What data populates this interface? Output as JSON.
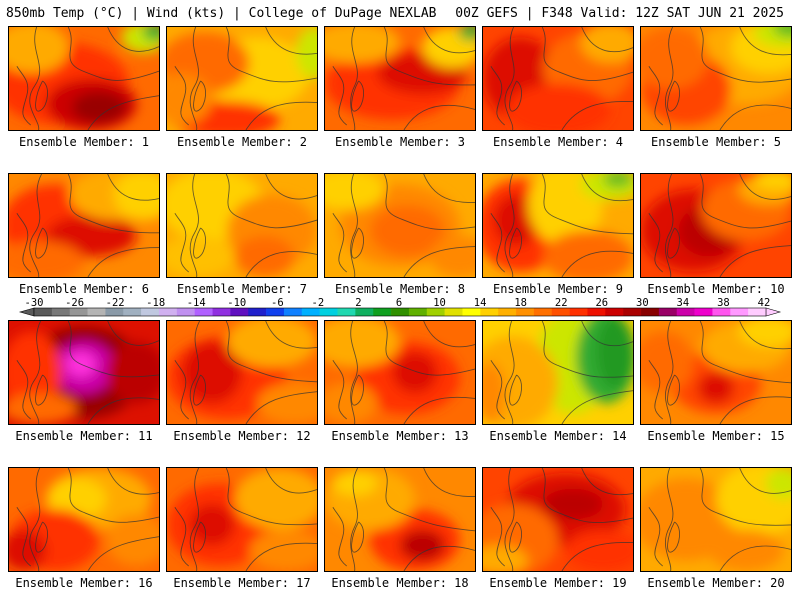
{
  "header": {
    "left": "850mb Temp (°C) | Wind (kts) | College of DuPage NEXLAB",
    "right": "00Z GEFS | F348 Valid: 12Z SAT JUN 21 2025"
  },
  "panels": [
    {
      "label": "Ensemble Member: 1",
      "base": "#ff6a00",
      "blobs": [
        [
          "#ff3300",
          0.35,
          0.55,
          0.45,
          0.4
        ],
        [
          "#cc0000",
          0.55,
          0.75,
          0.3,
          0.25
        ],
        [
          "#990000",
          0.6,
          0.78,
          0.18,
          0.15
        ],
        [
          "#ffaa00",
          0.15,
          0.2,
          0.25,
          0.25
        ],
        [
          "#cce600",
          0.9,
          0.1,
          0.15,
          0.15
        ],
        [
          "#33aa33",
          0.97,
          0.05,
          0.08,
          0.08
        ]
      ]
    },
    {
      "label": "Ensemble Member: 2",
      "base": "#ffaa00",
      "blobs": [
        [
          "#ffd000",
          0.6,
          0.45,
          0.35,
          0.35
        ],
        [
          "#ff6a00",
          0.25,
          0.35,
          0.3,
          0.3
        ],
        [
          "#ff3300",
          0.4,
          0.9,
          0.35,
          0.18
        ],
        [
          "#cce600",
          0.98,
          0.25,
          0.12,
          0.25
        ],
        [
          "#ff8800",
          0.1,
          0.7,
          0.2,
          0.25
        ]
      ]
    },
    {
      "label": "Ensemble Member: 3",
      "base": "#ff6a00",
      "blobs": [
        [
          "#ff3300",
          0.45,
          0.55,
          0.45,
          0.35
        ],
        [
          "#dd1100",
          0.65,
          0.45,
          0.3,
          0.2
        ],
        [
          "#ffaa00",
          0.2,
          0.15,
          0.3,
          0.2
        ],
        [
          "#ffd000",
          0.85,
          0.2,
          0.2,
          0.2
        ],
        [
          "#33aa33",
          0.97,
          0.05,
          0.08,
          0.08
        ]
      ]
    },
    {
      "label": "Ensemble Member: 4",
      "base": "#ff4400",
      "blobs": [
        [
          "#dd1100",
          0.25,
          0.5,
          0.25,
          0.4
        ],
        [
          "#ff6a00",
          0.7,
          0.4,
          0.3,
          0.35
        ],
        [
          "#ffaa00",
          0.85,
          0.15,
          0.2,
          0.2
        ],
        [
          "#ff3300",
          0.5,
          0.8,
          0.35,
          0.25
        ]
      ]
    },
    {
      "label": "Ensemble Member: 5",
      "base": "#ff8800",
      "blobs": [
        [
          "#ffaa00",
          0.7,
          0.35,
          0.4,
          0.4
        ],
        [
          "#ffd000",
          0.85,
          0.2,
          0.25,
          0.25
        ],
        [
          "#cce600",
          0.95,
          0.05,
          0.2,
          0.15
        ],
        [
          "#66bb22",
          1.0,
          0.0,
          0.12,
          0.1
        ],
        [
          "#ff4400",
          0.3,
          0.6,
          0.3,
          0.35
        ],
        [
          "#ff6a00",
          0.2,
          0.3,
          0.25,
          0.3
        ]
      ]
    },
    {
      "label": "Ensemble Member: 6",
      "base": "#ff8800",
      "blobs": [
        [
          "#ff3300",
          0.3,
          0.5,
          0.35,
          0.4
        ],
        [
          "#dd1100",
          0.55,
          0.6,
          0.3,
          0.2
        ],
        [
          "#ffaa00",
          0.7,
          0.2,
          0.3,
          0.25
        ],
        [
          "#ffd000",
          0.9,
          0.2,
          0.2,
          0.25
        ],
        [
          "#ff6a00",
          0.2,
          0.85,
          0.3,
          0.2
        ]
      ]
    },
    {
      "label": "Ensemble Member: 7",
      "base": "#ffaa00",
      "blobs": [
        [
          "#ffd000",
          0.3,
          0.3,
          0.35,
          0.35
        ],
        [
          "#ff8800",
          0.7,
          0.55,
          0.3,
          0.35
        ],
        [
          "#ff6a00",
          0.65,
          0.8,
          0.2,
          0.2
        ],
        [
          "#ffc000",
          0.2,
          0.8,
          0.25,
          0.2
        ]
      ]
    },
    {
      "label": "Ensemble Member: 8",
      "base": "#ffaa00",
      "blobs": [
        [
          "#ff8800",
          0.5,
          0.5,
          0.4,
          0.4
        ],
        [
          "#ff6a00",
          0.55,
          0.55,
          0.25,
          0.25
        ],
        [
          "#ffd000",
          0.15,
          0.15,
          0.25,
          0.2
        ],
        [
          "#ff8800",
          0.9,
          0.8,
          0.2,
          0.2
        ]
      ]
    },
    {
      "label": "Ensemble Member: 9",
      "base": "#ffaa00",
      "blobs": [
        [
          "#ff3300",
          0.25,
          0.5,
          0.3,
          0.45
        ],
        [
          "#dd1100",
          0.22,
          0.45,
          0.15,
          0.25
        ],
        [
          "#ffd000",
          0.55,
          0.3,
          0.25,
          0.4
        ],
        [
          "#cce600",
          0.85,
          0.1,
          0.2,
          0.15
        ],
        [
          "#66bb22",
          0.9,
          0.05,
          0.1,
          0.08
        ],
        [
          "#ff6a00",
          0.7,
          0.8,
          0.3,
          0.25
        ]
      ]
    },
    {
      "label": "Ensemble Member: 10",
      "base": "#ff4400",
      "blobs": [
        [
          "#dd1100",
          0.35,
          0.55,
          0.35,
          0.4
        ],
        [
          "#bb0000",
          0.45,
          0.55,
          0.2,
          0.25
        ],
        [
          "#ff6a00",
          0.7,
          0.35,
          0.3,
          0.3
        ],
        [
          "#ffaa00",
          0.85,
          0.15,
          0.2,
          0.15
        ],
        [
          "#ffd000",
          0.9,
          0.05,
          0.15,
          0.1
        ]
      ]
    },
    {
      "label": "Ensemble Member: 11",
      "base": "#dd1100",
      "blobs": [
        [
          "#990000",
          0.5,
          0.5,
          0.4,
          0.45
        ],
        [
          "#cc00aa",
          0.5,
          0.45,
          0.2,
          0.25
        ],
        [
          "#ff33dd",
          0.48,
          0.42,
          0.1,
          0.12
        ],
        [
          "#ff3300",
          0.15,
          0.5,
          0.2,
          0.4
        ],
        [
          "#ff6a00",
          0.2,
          0.85,
          0.25,
          0.15
        ],
        [
          "#bb0000",
          0.85,
          0.5,
          0.2,
          0.3
        ]
      ]
    },
    {
      "label": "Ensemble Member: 12",
      "base": "#ff6a00",
      "blobs": [
        [
          "#ff3300",
          0.4,
          0.55,
          0.4,
          0.4
        ],
        [
          "#dd1100",
          0.3,
          0.5,
          0.2,
          0.3
        ],
        [
          "#ffaa00",
          0.7,
          0.2,
          0.3,
          0.25
        ],
        [
          "#ff8800",
          0.85,
          0.8,
          0.25,
          0.2
        ]
      ]
    },
    {
      "label": "Ensemble Member: 13",
      "base": "#ff6a00",
      "blobs": [
        [
          "#ff3300",
          0.55,
          0.55,
          0.35,
          0.35
        ],
        [
          "#dd1100",
          0.6,
          0.5,
          0.15,
          0.2
        ],
        [
          "#ffaa00",
          0.2,
          0.2,
          0.3,
          0.25
        ],
        [
          "#ff8800",
          0.15,
          0.8,
          0.2,
          0.2
        ]
      ]
    },
    {
      "label": "Ensemble Member: 14",
      "base": "#ffd000",
      "blobs": [
        [
          "#cce600",
          0.6,
          0.4,
          0.25,
          0.5
        ],
        [
          "#33aa33",
          0.82,
          0.35,
          0.2,
          0.45
        ],
        [
          "#229922",
          0.88,
          0.3,
          0.12,
          0.35
        ],
        [
          "#ffaa00",
          0.2,
          0.6,
          0.3,
          0.45
        ],
        [
          "#ff8800",
          0.05,
          0.7,
          0.1,
          0.3
        ]
      ]
    },
    {
      "label": "Ensemble Member: 15",
      "base": "#ff8800",
      "blobs": [
        [
          "#ff4400",
          0.5,
          0.6,
          0.3,
          0.3
        ],
        [
          "#dd1100",
          0.5,
          0.65,
          0.12,
          0.15
        ],
        [
          "#ffaa00",
          0.7,
          0.25,
          0.3,
          0.25
        ],
        [
          "#ffd000",
          0.85,
          0.1,
          0.2,
          0.15
        ],
        [
          "#ff6a00",
          0.15,
          0.4,
          0.2,
          0.3
        ]
      ]
    },
    {
      "label": "Ensemble Member: 16",
      "base": "#ff6a00",
      "blobs": [
        [
          "#ffaa00",
          0.6,
          0.3,
          0.35,
          0.3
        ],
        [
          "#ffd000",
          0.45,
          0.3,
          0.2,
          0.2
        ],
        [
          "#ff3300",
          0.3,
          0.7,
          0.3,
          0.3
        ],
        [
          "#dd1100",
          0.1,
          0.8,
          0.15,
          0.2
        ],
        [
          "#ff8800",
          0.85,
          0.7,
          0.2,
          0.25
        ]
      ]
    },
    {
      "label": "Ensemble Member: 17",
      "base": "#ff6a00",
      "blobs": [
        [
          "#ff3300",
          0.35,
          0.55,
          0.35,
          0.4
        ],
        [
          "#dd1100",
          0.3,
          0.55,
          0.15,
          0.2
        ],
        [
          "#ffaa00",
          0.75,
          0.3,
          0.3,
          0.3
        ],
        [
          "#ff8800",
          0.8,
          0.8,
          0.25,
          0.2
        ]
      ]
    },
    {
      "label": "Ensemble Member: 18",
      "base": "#ff8800",
      "blobs": [
        [
          "#ff3300",
          0.6,
          0.7,
          0.3,
          0.3
        ],
        [
          "#bb0000",
          0.65,
          0.75,
          0.15,
          0.15
        ],
        [
          "#ffaa00",
          0.3,
          0.3,
          0.3,
          0.3
        ],
        [
          "#ffd000",
          0.2,
          0.15,
          0.15,
          0.12
        ]
      ]
    },
    {
      "label": "Ensemble Member: 19",
      "base": "#ff4400",
      "blobs": [
        [
          "#dd1100",
          0.55,
          0.4,
          0.4,
          0.35
        ],
        [
          "#bb0000",
          0.6,
          0.35,
          0.2,
          0.15
        ],
        [
          "#ff6a00",
          0.2,
          0.7,
          0.3,
          0.35
        ],
        [
          "#ffaa00",
          0.1,
          0.9,
          0.2,
          0.15
        ],
        [
          "#ff3300",
          0.8,
          0.8,
          0.25,
          0.2
        ]
      ]
    },
    {
      "label": "Ensemble Member: 20",
      "base": "#ffaa00",
      "blobs": [
        [
          "#ff8800",
          0.3,
          0.5,
          0.35,
          0.4
        ],
        [
          "#ffd000",
          0.8,
          0.3,
          0.3,
          0.35
        ],
        [
          "#cce600",
          0.95,
          0.15,
          0.12,
          0.15
        ],
        [
          "#ff8800",
          0.7,
          0.8,
          0.25,
          0.2
        ]
      ]
    }
  ],
  "colorbar": {
    "ticks": [
      "-30",
      "-26",
      "-22",
      "-18",
      "-14",
      "-10",
      "-6",
      "-2",
      "2",
      "6",
      "10",
      "14",
      "18",
      "22",
      "26",
      "30",
      "34",
      "38",
      "42"
    ],
    "colors": [
      "#5a5a5a",
      "#787878",
      "#969696",
      "#b4b4b4",
      "#8a9aa8",
      "#a0b0c0",
      "#c0c8e0",
      "#d0b0f0",
      "#c090f0",
      "#b060ff",
      "#9030e0",
      "#6010c0",
      "#2020cc",
      "#1040ee",
      "#1080ff",
      "#00b0ff",
      "#00d0e0",
      "#20d8b0",
      "#10b060",
      "#10a020",
      "#309000",
      "#60b000",
      "#a0d000",
      "#e0e000",
      "#ffff00",
      "#ffd000",
      "#ffb000",
      "#ff9000",
      "#ff7000",
      "#ff5000",
      "#ff3000",
      "#ee1000",
      "#cc0000",
      "#aa0000",
      "#880000",
      "#990066",
      "#cc00aa",
      "#ee00cc",
      "#ff55ee",
      "#ff99ff",
      "#ffccff"
    ]
  }
}
